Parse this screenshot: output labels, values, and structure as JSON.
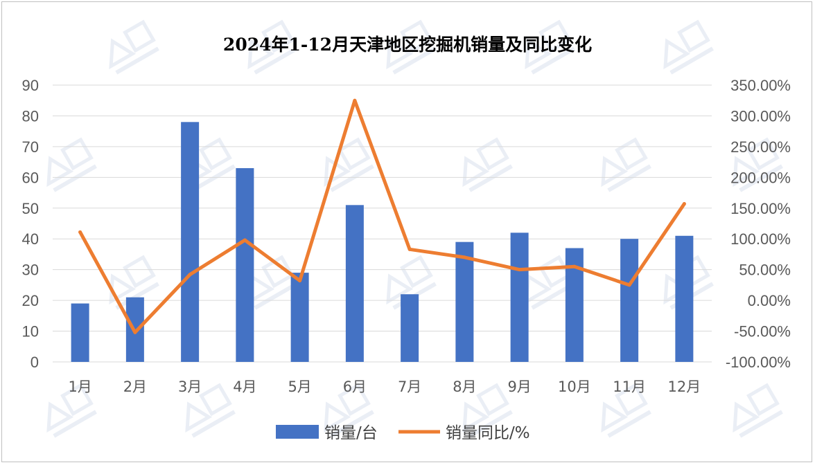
{
  "chart_data": {
    "type": "bar",
    "title": "2024年1-12月天津地区挖掘机销量及同比变化",
    "categories": [
      "1月",
      "2月",
      "3月",
      "4月",
      "5月",
      "6月",
      "7月",
      "8月",
      "9月",
      "10月",
      "11月",
      "12月"
    ],
    "series": [
      {
        "name": "销量/台",
        "type": "bar",
        "axis": "left",
        "color": "#4472C4",
        "values": [
          19,
          21,
          78,
          63,
          29,
          51,
          22,
          39,
          42,
          37,
          40,
          41
        ]
      },
      {
        "name": "销量同比/%",
        "type": "line",
        "axis": "right",
        "color": "#ED7D31",
        "values": [
          111.0,
          -52.0,
          42.0,
          98.0,
          32.0,
          325.0,
          83.0,
          70.0,
          50.0,
          55.0,
          25.0,
          157.0
        ]
      }
    ],
    "left_axis": {
      "min": 0,
      "max": 90,
      "step": 10,
      "ticks": [
        "0",
        "10",
        "20",
        "30",
        "40",
        "50",
        "60",
        "70",
        "80",
        "90"
      ]
    },
    "right_axis": {
      "min": -100,
      "max": 350,
      "step": 50,
      "ticks": [
        "-100.00%",
        "-50.00%",
        "0.00%",
        "50.00%",
        "100.00%",
        "150.00%",
        "200.00%",
        "250.00%",
        "300.00%",
        "350.00%"
      ]
    },
    "grid": true,
    "legend_position": "bottom",
    "watermark_icon": "today-logo-watermark"
  }
}
